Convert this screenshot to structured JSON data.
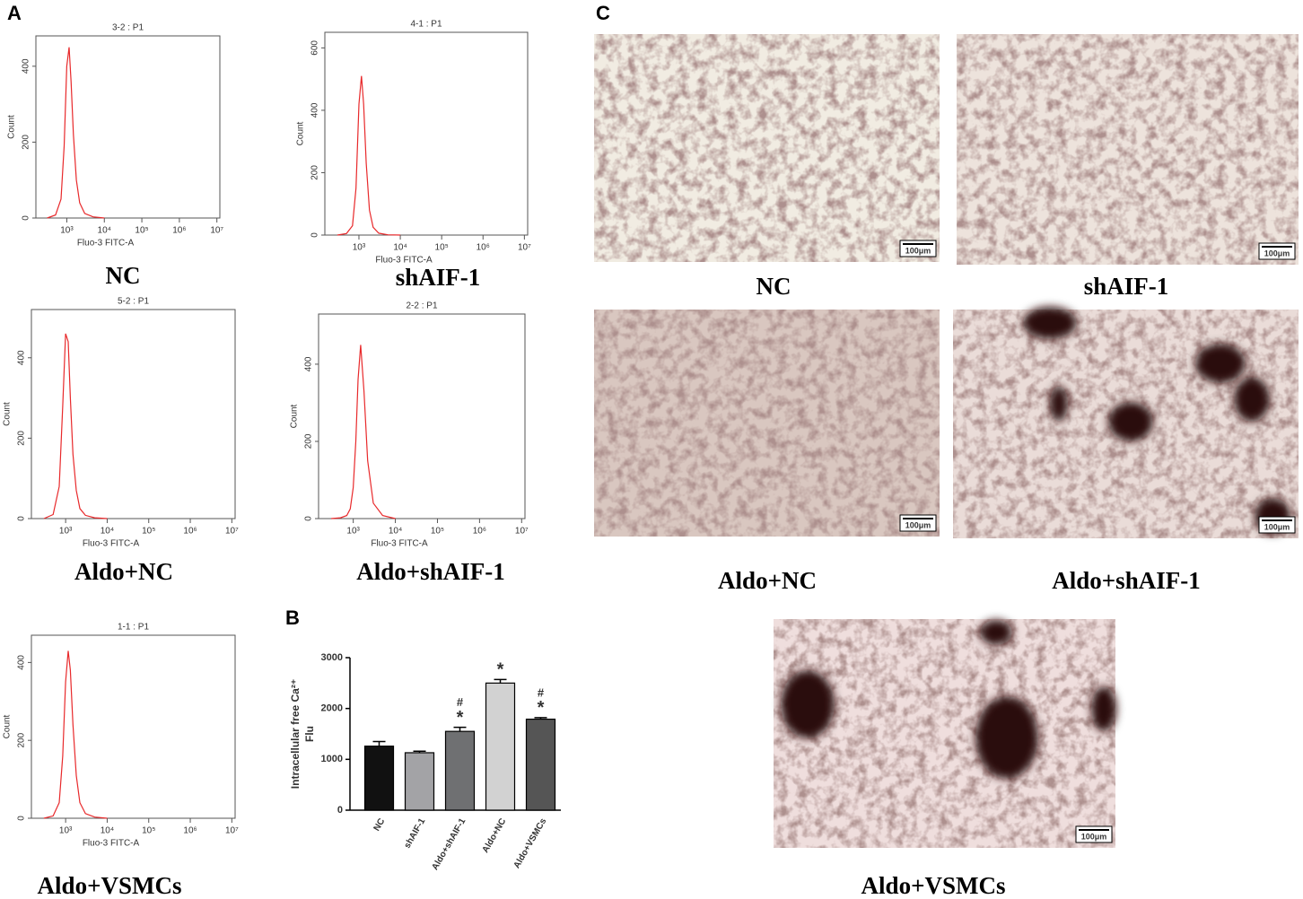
{
  "panel_labels": [
    "A",
    "B",
    "C"
  ],
  "chart_data": [
    {
      "type": "line",
      "title": "3-2 : P1",
      "caption": "NC",
      "xlabel": "Fluo-3 FITC-A",
      "ylabel": "Count",
      "xscale": "log",
      "color": "#e8292b",
      "x": [
        300,
        500,
        700,
        850,
        1000,
        1150,
        1300,
        1500,
        1800,
        2200,
        3000,
        5000,
        10000
      ],
      "values": [
        0,
        8,
        50,
        190,
        400,
        450,
        360,
        220,
        100,
        40,
        12,
        3,
        0
      ],
      "xlim": [
        150,
        12000000
      ],
      "ylim": [
        0,
        480
      ],
      "xticks": [
        {
          "value": 1000,
          "label": "10³"
        },
        {
          "value": 10000,
          "label": "10⁴"
        },
        {
          "value": 100000,
          "label": "10⁵"
        },
        {
          "value": 1000000,
          "label": "10⁶"
        },
        {
          "value": 10000000,
          "label": "10⁷"
        }
      ],
      "yticks": [
        0,
        200,
        400
      ]
    },
    {
      "type": "line",
      "title": "4-1 : P1",
      "caption": "shAIF-1",
      "xlabel": "Fluo-3 FITC-A",
      "ylabel": "Count",
      "xscale": "log",
      "color": "#e8292b",
      "x": [
        300,
        500,
        700,
        850,
        1000,
        1150,
        1300,
        1500,
        1800,
        2200,
        3000,
        5000,
        10000
      ],
      "values": [
        0,
        5,
        30,
        150,
        420,
        510,
        420,
        230,
        80,
        25,
        6,
        1,
        0
      ],
      "xlim": [
        150,
        12000000
      ],
      "ylim": [
        0,
        650
      ],
      "xticks": [
        {
          "value": 1000,
          "label": "10³"
        },
        {
          "value": 10000,
          "label": "10⁴"
        },
        {
          "value": 100000,
          "label": "10⁵"
        },
        {
          "value": 1000000,
          "label": "10⁶"
        },
        {
          "value": 10000000,
          "label": "10⁷"
        }
      ],
      "yticks": [
        0,
        200,
        400,
        600
      ]
    },
    {
      "type": "line",
      "title": "5-2 : P1",
      "caption": "Aldo+NC",
      "xlabel": "Fluo-3 FITC-A",
      "ylabel": "Count",
      "xscale": "log",
      "color": "#e8292b",
      "x": [
        300,
        500,
        700,
        850,
        1000,
        1150,
        1300,
        1500,
        1800,
        2200,
        3000,
        5000,
        10000
      ],
      "values": [
        0,
        10,
        80,
        280,
        460,
        440,
        300,
        160,
        70,
        25,
        8,
        2,
        0
      ],
      "xlim": [
        150,
        12000000
      ],
      "ylim": [
        0,
        520
      ],
      "xticks": [
        {
          "value": 1000,
          "label": "10³"
        },
        {
          "value": 10000,
          "label": "10⁴"
        },
        {
          "value": 100000,
          "label": "10⁵"
        },
        {
          "value": 1000000,
          "label": "10⁶"
        },
        {
          "value": 10000000,
          "label": "10⁷"
        }
      ],
      "yticks": [
        0,
        200,
        400
      ]
    },
    {
      "type": "line",
      "title": "2-2 : P1",
      "caption": "Aldo+shAIF-1",
      "xlabel": "Fluo-3 FITC-A",
      "ylabel": "Count",
      "xscale": "log",
      "color": "#e8292b",
      "x": [
        300,
        500,
        700,
        850,
        1000,
        1150,
        1300,
        1500,
        1800,
        2200,
        3000,
        5000,
        10000
      ],
      "values": [
        0,
        2,
        8,
        25,
        80,
        200,
        360,
        450,
        330,
        150,
        40,
        8,
        0
      ],
      "xlim": [
        150,
        12000000
      ],
      "ylim": [
        0,
        530
      ],
      "xticks": [
        {
          "value": 1000,
          "label": "10³"
        },
        {
          "value": 10000,
          "label": "10⁴"
        },
        {
          "value": 100000,
          "label": "10⁵"
        },
        {
          "value": 1000000,
          "label": "10⁶"
        },
        {
          "value": 10000000,
          "label": "10⁷"
        }
      ],
      "yticks": [
        0,
        200,
        400
      ]
    },
    {
      "type": "line",
      "title": "1-1 : P1",
      "caption": "Aldo+VSMCs",
      "xlabel": "Fluo-3 FITC-A",
      "ylabel": "Count",
      "xscale": "log",
      "color": "#e8292b",
      "x": [
        300,
        500,
        700,
        850,
        1000,
        1150,
        1300,
        1500,
        1800,
        2200,
        3000,
        5000,
        10000
      ],
      "values": [
        0,
        6,
        40,
        160,
        350,
        430,
        380,
        240,
        110,
        40,
        12,
        3,
        0
      ],
      "xlim": [
        150,
        12000000
      ],
      "ylim": [
        0,
        470
      ],
      "xticks": [
        {
          "value": 1000,
          "label": "10³"
        },
        {
          "value": 10000,
          "label": "10⁴"
        },
        {
          "value": 100000,
          "label": "10⁵"
        },
        {
          "value": 1000000,
          "label": "10⁶"
        },
        {
          "value": 10000000,
          "label": "10⁷"
        }
      ],
      "yticks": [
        0,
        200,
        400
      ]
    },
    {
      "type": "bar",
      "ylabel": [
        "Intracellular free Ca²⁺",
        "Flu"
      ],
      "categories": [
        "NC",
        "shAIF-1",
        "Aldo+shAIF-1",
        "Aldo+NC",
        "Aldo+VSMCs"
      ],
      "values": [
        1260,
        1130,
        1550,
        2500,
        1790
      ],
      "errors": [
        90,
        30,
        80,
        70,
        30
      ],
      "colors": [
        "#111111",
        "#a3a3a6",
        "#6f7072",
        "#d2d2d2",
        "#555555"
      ],
      "ylim": [
        0,
        3000
      ],
      "yticks": [
        0,
        1000,
        2000,
        3000
      ],
      "markers": [
        {
          "category": "Aldo+shAIF-1",
          "text": "*"
        },
        {
          "category": "Aldo+shAIF-1",
          "text": "#"
        },
        {
          "category": "Aldo+NC",
          "text": "*"
        },
        {
          "category": "Aldo+VSMCs",
          "text": "*"
        },
        {
          "category": "Aldo+VSMCs",
          "text": "#"
        }
      ]
    }
  ],
  "micrographs": [
    {
      "caption": "NC",
      "scale_bar": "100μm"
    },
    {
      "caption": "shAIF-1",
      "scale_bar": "100μm"
    },
    {
      "caption": "Aldo+NC",
      "scale_bar": "100μm"
    },
    {
      "caption": "Aldo+shAIF-1",
      "scale_bar": "100μm"
    },
    {
      "caption": "Aldo+VSMCs",
      "scale_bar": "100μm"
    }
  ]
}
